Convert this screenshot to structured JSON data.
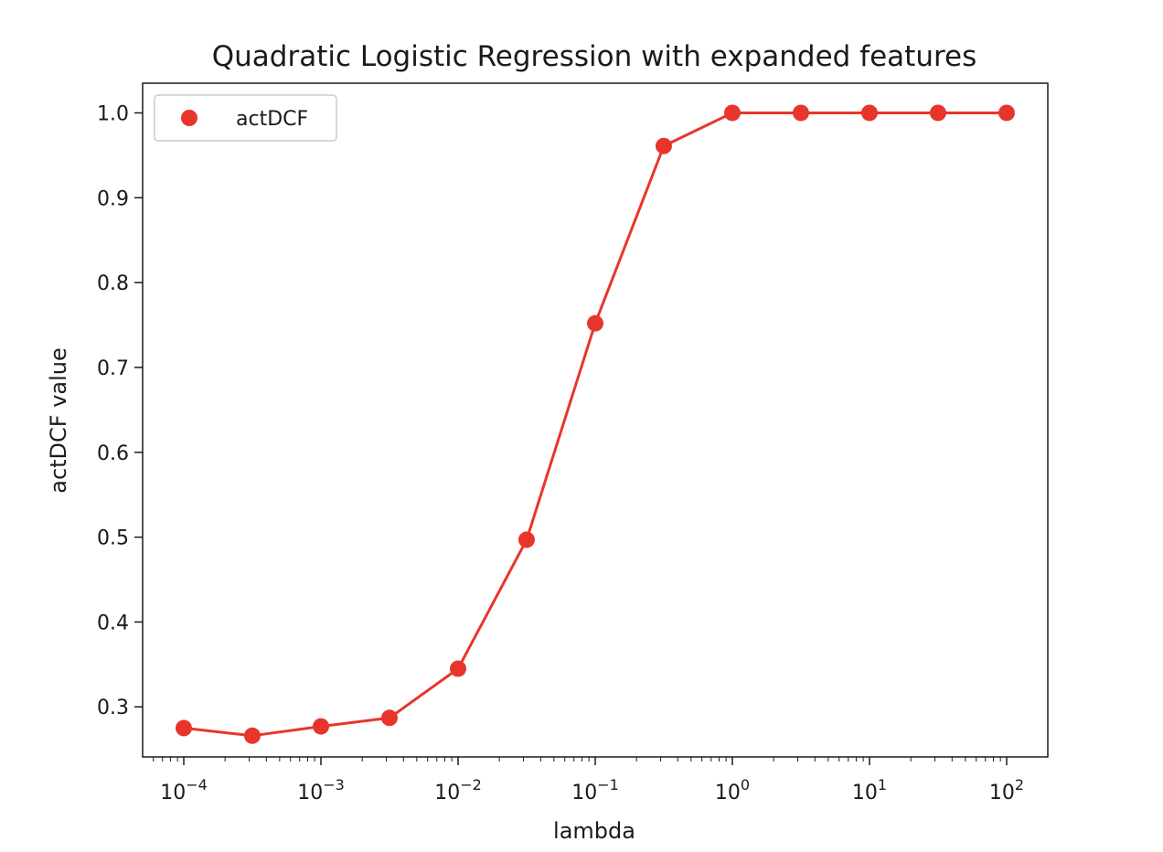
{
  "chart_data": {
    "type": "line",
    "title": "Quadratic Logistic Regression with expanded features",
    "xlabel": "lambda",
    "ylabel": "actDCF value",
    "xscale": "log",
    "xlim_log10": [
      -4.3,
      2.3
    ],
    "ylim": [
      0.241,
      1.035
    ],
    "grid": false,
    "legend_position": "top-left",
    "x_ticks": [
      {
        "base": "10",
        "exp": "−4",
        "log": -4
      },
      {
        "base": "10",
        "exp": "−3",
        "log": -3
      },
      {
        "base": "10",
        "exp": "−2",
        "log": -2
      },
      {
        "base": "10",
        "exp": "−1",
        "log": -1
      },
      {
        "base": "10",
        "exp": "0",
        "log": 0
      },
      {
        "base": "10",
        "exp": "1",
        "log": 1
      },
      {
        "base": "10",
        "exp": "2",
        "log": 2
      }
    ],
    "y_ticks": [
      "0.3",
      "0.4",
      "0.5",
      "0.6",
      "0.7",
      "0.8",
      "0.9",
      "1.0"
    ],
    "series": [
      {
        "name": "actDCF",
        "color": "#e8352b",
        "x": [
          0.0001,
          0.000316,
          0.001,
          0.00316,
          0.01,
          0.0316,
          0.1,
          0.316,
          1,
          3.16,
          10,
          31.6,
          100
        ],
        "y": [
          0.275,
          0.266,
          0.277,
          0.287,
          0.345,
          0.497,
          0.752,
          0.961,
          1.0,
          1.0,
          1.0,
          1.0,
          1.0
        ]
      }
    ]
  }
}
